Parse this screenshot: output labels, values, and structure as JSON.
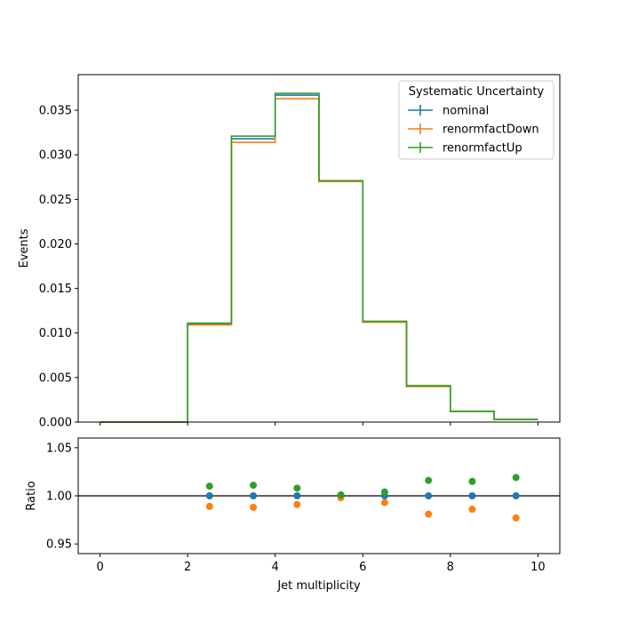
{
  "chart_data": [
    {
      "type": "line",
      "subtype": "step-histogram",
      "bin_edges": [
        0,
        1,
        2,
        3,
        4,
        5,
        6,
        7,
        8,
        9,
        10
      ],
      "xlim": [
        -0.5,
        10.5
      ],
      "ylim": [
        0,
        0.039
      ],
      "ylabel": "Events",
      "yticks": [
        "0.000",
        "0.005",
        "0.010",
        "0.015",
        "0.020",
        "0.025",
        "0.030",
        "0.035"
      ],
      "ytick_values": [
        0,
        0.005,
        0.01,
        0.015,
        0.02,
        0.025,
        0.03,
        0.035
      ],
      "grid": false,
      "legend": {
        "title": "Systematic Uncertainty",
        "placement": "top-right"
      },
      "series": [
        {
          "name": "nominal",
          "color": "#1f77b4",
          "values": [
            0,
            0,
            0.011,
            0.0318,
            0.0367,
            0.0271,
            0.0113,
            0.004,
            0.0012,
            0.0003
          ]
        },
        {
          "name": "renormfactDown",
          "color": "#ff7f0e",
          "values": [
            0,
            0,
            0.0109,
            0.0314,
            0.0363,
            0.027,
            0.0112,
            0.004,
            0.0012,
            0.00029
          ]
        },
        {
          "name": "renormfactUp",
          "color": "#2ca02c",
          "values": [
            0,
            0,
            0.0111,
            0.0321,
            0.0369,
            0.0271,
            0.0113,
            0.0041,
            0.0012,
            0.00031
          ]
        }
      ]
    },
    {
      "type": "scatter",
      "x": [
        2.5,
        3.5,
        4.5,
        5.5,
        6.5,
        7.5,
        8.5,
        9.5
      ],
      "xlim": [
        -0.5,
        10.5
      ],
      "ylim": [
        0.94,
        1.06
      ],
      "xlabel": "Jet multiplicity",
      "ylabel": "Ratio",
      "xticks": [
        "0",
        "2",
        "4",
        "6",
        "8",
        "10"
      ],
      "xtick_values": [
        0,
        2,
        4,
        6,
        8,
        10
      ],
      "yticks": [
        "0.95",
        "1.00",
        "1.05"
      ],
      "ytick_values": [
        0.95,
        1.0,
        1.05
      ],
      "reference_line": 1.0,
      "series": [
        {
          "name": "nominal",
          "color": "#1f77b4",
          "values": [
            1.0,
            1.0,
            1.0,
            1.0,
            1.0,
            1.0,
            1.0,
            1.0
          ]
        },
        {
          "name": "renormfactDown",
          "color": "#ff7f0e",
          "values": [
            0.989,
            0.988,
            0.991,
            0.998,
            0.993,
            0.981,
            0.986,
            0.977
          ]
        },
        {
          "name": "renormfactUp",
          "color": "#2ca02c",
          "values": [
            1.01,
            1.011,
            1.008,
            1.001,
            1.004,
            1.016,
            1.015,
            1.019
          ]
        }
      ]
    }
  ]
}
